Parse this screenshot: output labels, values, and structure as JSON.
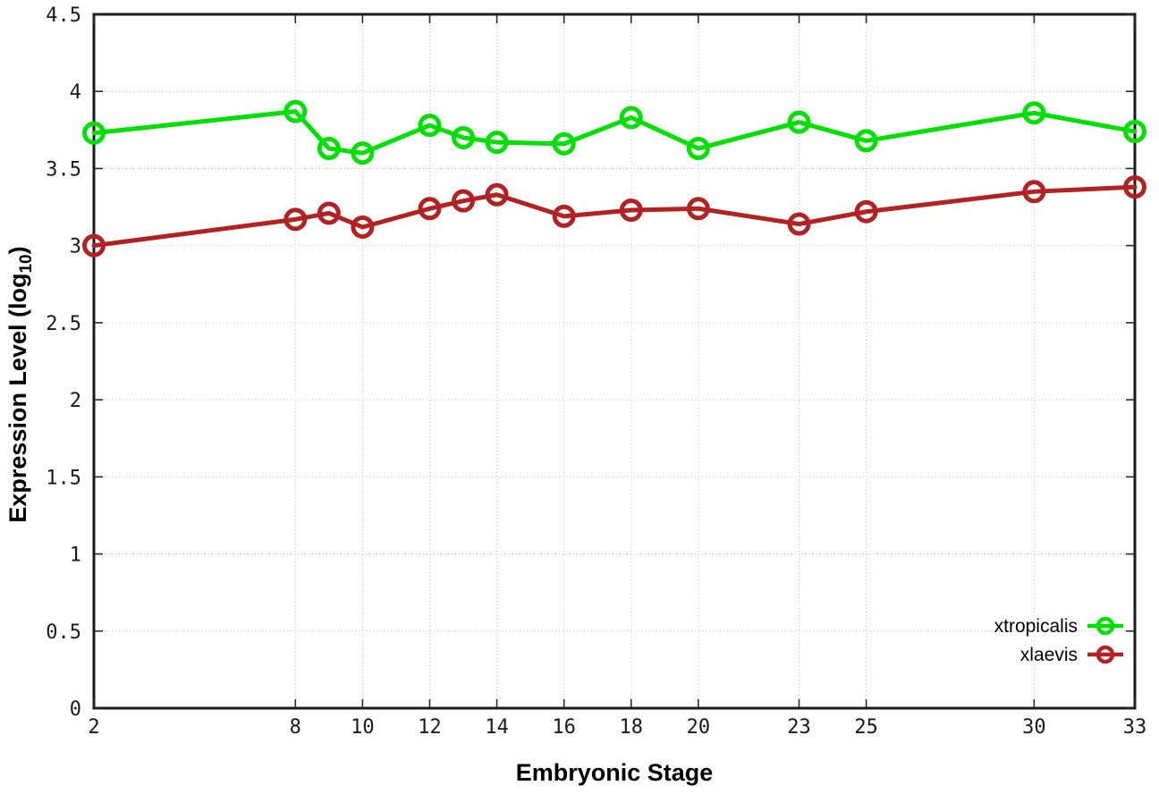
{
  "figure": {
    "xlabel": "Embryonic Stage",
    "ylabel_prefix": "Expression Level (log",
    "ylabel_sub": "10",
    "ylabel_suffix": ")"
  },
  "chart_data": {
    "type": "line",
    "title": "",
    "xlabel": "Embryonic Stage",
    "ylabel": "Expression Level (log10)",
    "xlim": [
      2,
      33
    ],
    "ylim": [
      0,
      4.5
    ],
    "x_ticks": [
      2,
      8,
      10,
      12,
      14,
      16,
      18,
      20,
      23,
      25,
      30,
      33
    ],
    "y_ticks": [
      0,
      0.5,
      1,
      1.5,
      2,
      2.5,
      3,
      3.5,
      4,
      4.5
    ],
    "grid": true,
    "legend_position": "inside-bottom-right",
    "marker": "open-circle",
    "x": [
      2,
      8,
      9,
      10,
      12,
      13,
      14,
      16,
      18,
      20,
      23,
      25,
      30,
      33
    ],
    "series": [
      {
        "name": "xtropicalis",
        "color": "#00e000",
        "values": [
          3.73,
          3.87,
          3.63,
          3.6,
          3.78,
          3.7,
          3.67,
          3.66,
          3.83,
          3.63,
          3.8,
          3.68,
          3.86,
          3.74
        ]
      },
      {
        "name": "xlaevis",
        "color": "#b22222",
        "values": [
          3.0,
          3.17,
          3.21,
          3.12,
          3.24,
          3.29,
          3.33,
          3.19,
          3.23,
          3.24,
          3.14,
          3.22,
          3.35,
          3.38
        ]
      }
    ],
    "colors": {
      "grid": "#c8c8c8",
      "axis": "#000000",
      "background": "#ffffff"
    }
  }
}
